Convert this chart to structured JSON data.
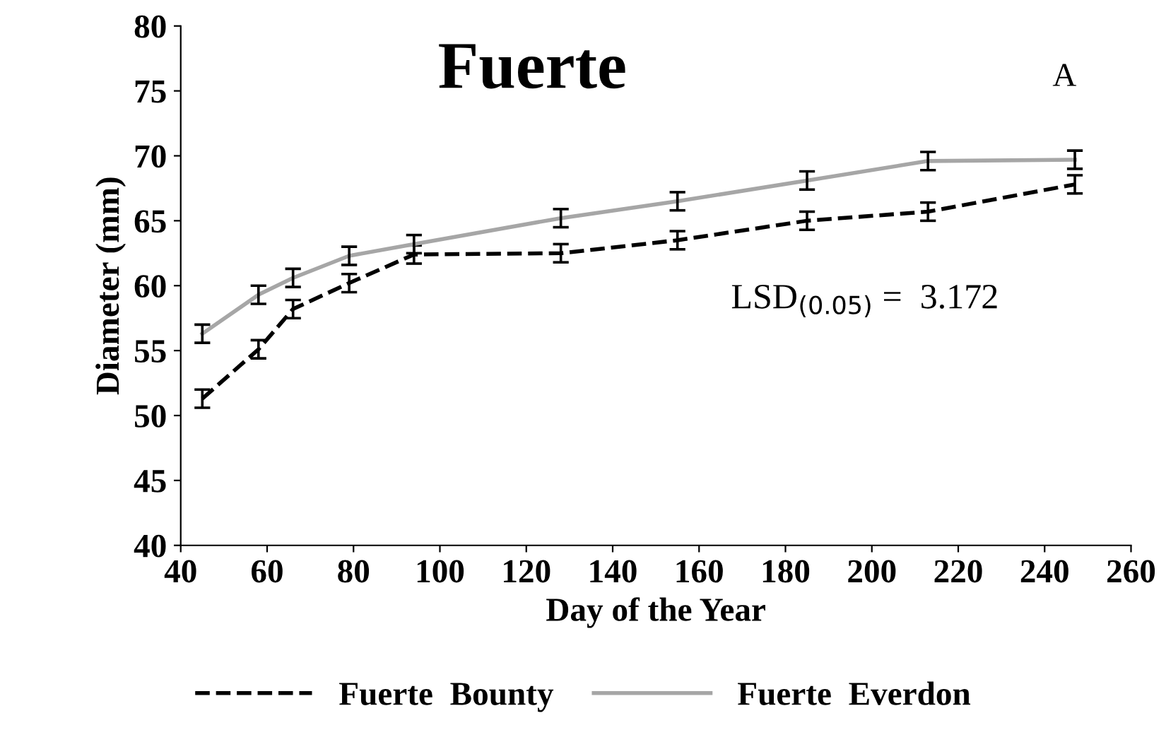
{
  "chart_data": {
    "type": "line",
    "title": "Fuerte",
    "xlabel": "Day of the Year",
    "ylabel": "Diameter (mm)",
    "x": [
      45,
      58,
      66,
      79,
      94,
      128,
      155,
      185,
      213,
      247
    ],
    "series": [
      {
        "name": "Fuerte  Bounty",
        "color": "#000000",
        "line_style": "dashed",
        "values": [
          51.3,
          55.1,
          58.2,
          60.2,
          62.4,
          62.5,
          63.5,
          65.0,
          65.7,
          67.8
        ],
        "errors": [
          0.7,
          0.7,
          0.7,
          0.7,
          0.7,
          0.7,
          0.7,
          0.7,
          0.7,
          0.7
        ]
      },
      {
        "name": "Fuerte  Everdon",
        "color": "#a6a6a6",
        "line_style": "solid",
        "values": [
          56.3,
          59.3,
          60.6,
          62.3,
          63.2,
          65.2,
          66.5,
          68.1,
          69.6,
          69.7
        ],
        "errors": [
          0.7,
          0.7,
          0.7,
          0.7,
          0.7,
          0.7,
          0.7,
          0.7,
          0.7,
          0.7
        ]
      }
    ],
    "xlim": [
      40,
      260
    ],
    "xticks": [
      40,
      60,
      80,
      100,
      120,
      140,
      160,
      180,
      200,
      220,
      240,
      260
    ],
    "ylim": [
      40,
      80
    ],
    "yticks": [
      40,
      45,
      50,
      55,
      60,
      65,
      70,
      75,
      80
    ],
    "annotations": [
      "A",
      "LSD$_{(0.05)}$ =  3.172"
    ],
    "legend": "bottom",
    "grid": false,
    "marker": "none"
  }
}
